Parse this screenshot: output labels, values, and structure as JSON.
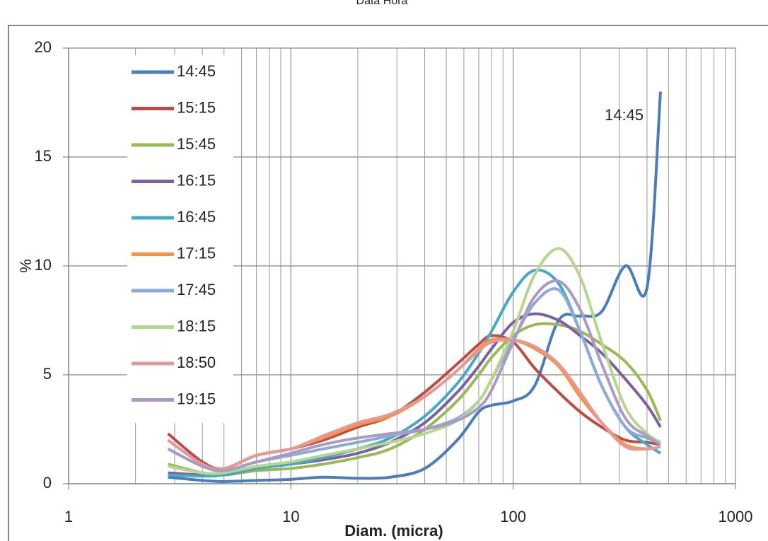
{
  "chart_data": {
    "type": "line",
    "title": "Data Hora",
    "x_label": "Diam. (micra)",
    "y_label": "%",
    "x": [
      2.8,
      4,
      5,
      7,
      10,
      14,
      20,
      28,
      40,
      56,
      70,
      80,
      100,
      125,
      160,
      200,
      250,
      320,
      400,
      460
    ],
    "x_log": true,
    "xlim": [
      1,
      1000
    ],
    "xticks": [
      1,
      10,
      100,
      1000
    ],
    "minor_grid": true,
    "ylim": [
      0,
      20
    ],
    "yticks": [
      0,
      5,
      10,
      15,
      20
    ],
    "grid": true,
    "legend": "upper left",
    "annotations": [
      {
        "text": "14:45"
      }
    ],
    "series": [
      {
        "name": "14:45",
        "color": "#4a7ebb",
        "values": [
          0.3,
          0.15,
          0.1,
          0.15,
          0.2,
          0.3,
          0.25,
          0.3,
          0.7,
          2,
          3.3,
          3.6,
          3.8,
          4.5,
          7.5,
          7.7,
          7.9,
          10,
          9,
          18
        ]
      },
      {
        "name": "15:15",
        "color": "#be4b48",
        "values": [
          2.3,
          1.0,
          0.7,
          1.3,
          1.6,
          2.0,
          2.6,
          3.1,
          4.2,
          5.5,
          6.4,
          6.8,
          6.5,
          5.3,
          4.2,
          3.3,
          2.6,
          2.0,
          1.9,
          1.8
        ]
      },
      {
        "name": "15:45",
        "color": "#98b954",
        "values": [
          0.9,
          0.5,
          0.4,
          0.6,
          0.7,
          0.9,
          1.2,
          1.6,
          2.5,
          3.8,
          5.0,
          5.8,
          6.8,
          7.3,
          7.3,
          7.0,
          6.4,
          5.6,
          4.3,
          2.9
        ]
      },
      {
        "name": "16:15",
        "color": "#7d60a0",
        "values": [
          0.5,
          0.4,
          0.4,
          0.7,
          0.9,
          1.1,
          1.4,
          1.9,
          2.8,
          4.2,
          5.4,
          6.2,
          7.4,
          7.8,
          7.5,
          6.8,
          6.0,
          4.8,
          3.6,
          2.6
        ]
      },
      {
        "name": "16:45",
        "color": "#46aac5",
        "values": [
          0.4,
          0.35,
          0.4,
          0.7,
          0.9,
          1.2,
          1.6,
          2.1,
          3.1,
          4.6,
          6.0,
          7.0,
          8.8,
          9.8,
          9.2,
          7.0,
          4.5,
          2.6,
          1.8,
          1.4
        ]
      },
      {
        "name": "17:15",
        "color": "#f69240",
        "values": [
          2.0,
          0.9,
          0.7,
          1.3,
          1.6,
          2.1,
          2.7,
          3.1,
          4.0,
          5.2,
          6.2,
          6.6,
          6.6,
          6.2,
          5.4,
          4.0,
          2.8,
          1.8,
          1.6,
          1.7
        ]
      },
      {
        "name": "17:45",
        "color": "#8fa9d8",
        "values": [
          1.6,
          0.8,
          0.6,
          1.0,
          1.3,
          1.6,
          1.9,
          2.2,
          2.5,
          3.0,
          3.8,
          4.8,
          6.6,
          8.3,
          8.9,
          7.0,
          4.5,
          2.6,
          2.1,
          1.9
        ]
      },
      {
        "name": "18:15",
        "color": "#b6d58d",
        "values": [
          0.8,
          0.5,
          0.5,
          0.8,
          1.0,
          1.3,
          1.6,
          1.9,
          2.3,
          2.9,
          3.8,
          4.8,
          7.0,
          9.6,
          10.8,
          9.5,
          6.5,
          3.5,
          2.3,
          1.9
        ]
      },
      {
        "name": "18:50",
        "color": "#e29a98",
        "values": [
          2.0,
          0.9,
          0.7,
          1.3,
          1.6,
          2.2,
          2.8,
          3.2,
          4.0,
          5.2,
          6.1,
          6.5,
          6.6,
          6.3,
          5.5,
          4.2,
          2.8,
          1.7,
          1.6,
          1.7
        ]
      },
      {
        "name": "19:15",
        "color": "#a99bc3",
        "values": [
          1.6,
          0.8,
          0.6,
          1.0,
          1.4,
          1.8,
          2.1,
          2.3,
          2.5,
          2.9,
          3.5,
          4.3,
          6.5,
          8.6,
          9.3,
          8.0,
          5.5,
          3.0,
          2.2,
          1.8
        ]
      }
    ]
  }
}
